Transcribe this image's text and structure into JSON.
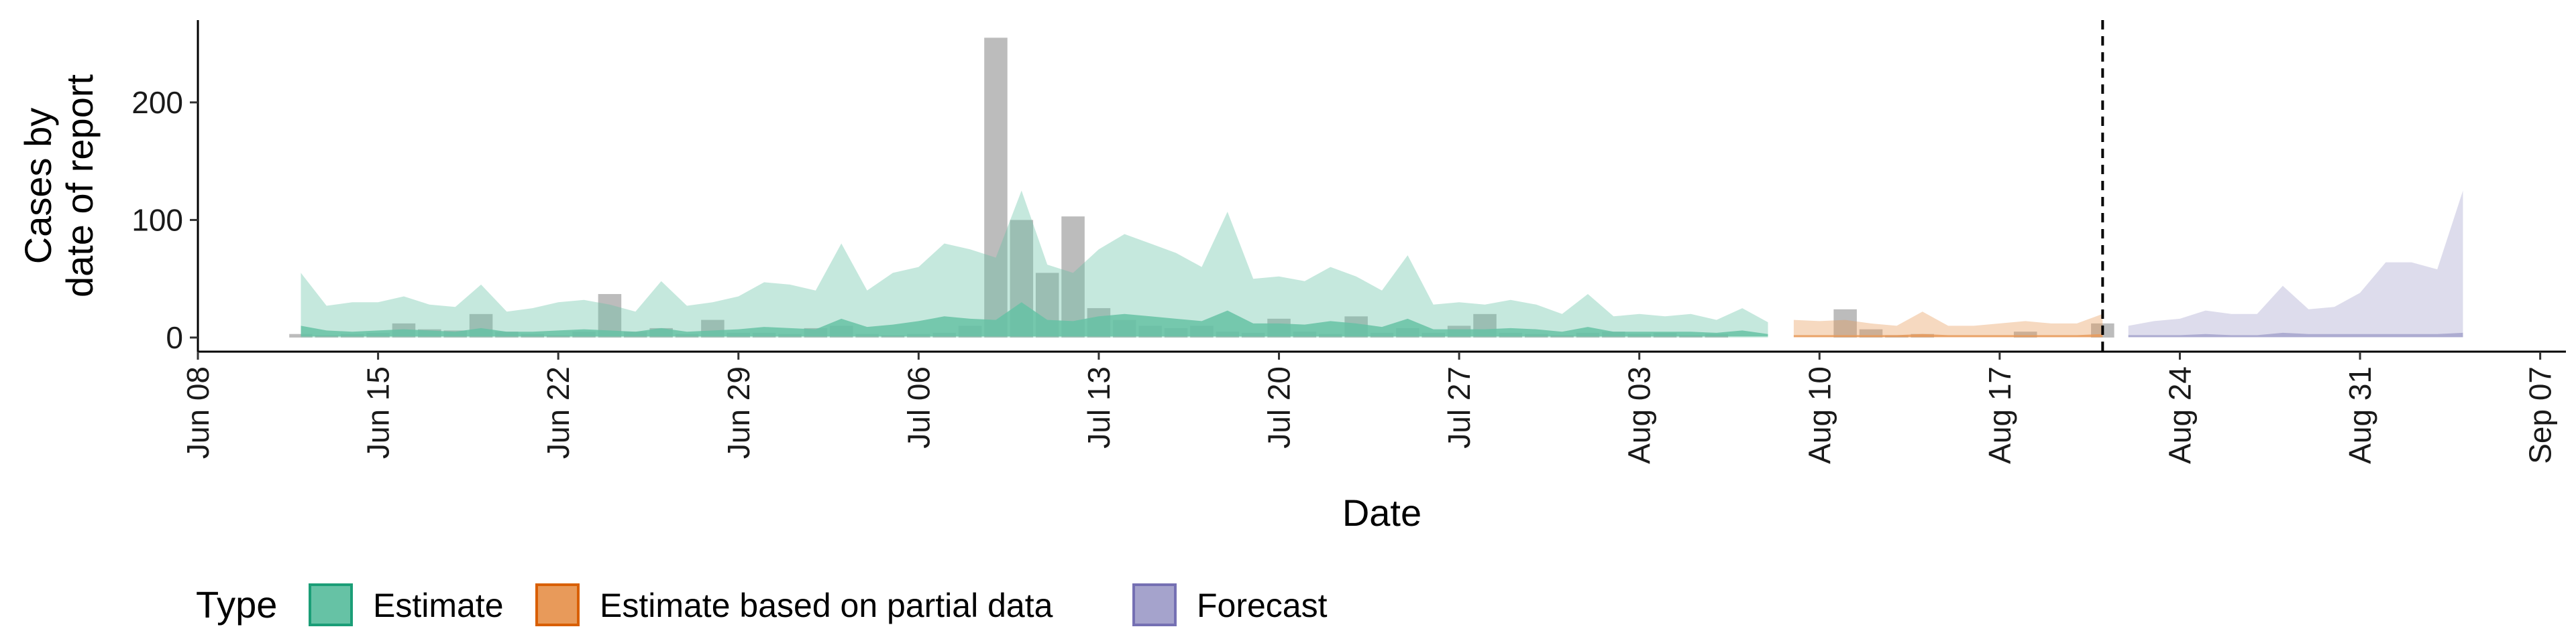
{
  "chart_data": {
    "type": "area",
    "xlabel": "Date",
    "ylabel_lines": [
      "Cases by",
      "date of report"
    ],
    "x_axis": {
      "range": [
        "2020-06-08",
        "2020-09-08"
      ],
      "ticks": [
        "Jun 08",
        "Jun 15",
        "Jun 22",
        "Jun 29",
        "Jul 06",
        "Jul 13",
        "Jul 20",
        "Jul 27",
        "Aug 03",
        "Aug 10",
        "Aug 17",
        "Aug 24",
        "Aug 31",
        "Sep 07"
      ],
      "tick_dates": [
        "2020-06-08",
        "2020-06-15",
        "2020-06-22",
        "2020-06-29",
        "2020-07-06",
        "2020-07-13",
        "2020-07-20",
        "2020-07-27",
        "2020-08-03",
        "2020-08-10",
        "2020-08-17",
        "2020-08-24",
        "2020-08-31",
        "2020-09-07"
      ]
    },
    "y_axis": {
      "range": [
        -12,
        270
      ],
      "ticks": [
        0,
        100,
        200
      ]
    },
    "forecast_date": "2020-08-21",
    "legend": {
      "title": "Type",
      "position": "bottom",
      "entries": [
        {
          "label": "Estimate",
          "fill": "#66c2a5",
          "stroke": "#1b9e77"
        },
        {
          "label": "Estimate based on partial data",
          "fill": "#e89a5a",
          "stroke": "#d95f02"
        },
        {
          "label": "Forecast",
          "fill": "#a5a3cc",
          "stroke": "#7570b3"
        }
      ]
    },
    "reported_cases": {
      "color": "#a0a0a0",
      "points": [
        [
          "2020-06-12",
          3
        ],
        [
          "2020-06-13",
          2
        ],
        [
          "2020-06-14",
          3
        ],
        [
          "2020-06-15",
          4
        ],
        [
          "2020-06-16",
          12
        ],
        [
          "2020-06-17",
          7
        ],
        [
          "2020-06-18",
          6
        ],
        [
          "2020-06-19",
          20
        ],
        [
          "2020-06-20",
          5
        ],
        [
          "2020-06-21",
          3
        ],
        [
          "2020-06-22",
          2
        ],
        [
          "2020-06-23",
          5
        ],
        [
          "2020-06-24",
          37
        ],
        [
          "2020-06-25",
          5
        ],
        [
          "2020-06-26",
          8
        ],
        [
          "2020-06-27",
          3
        ],
        [
          "2020-06-28",
          15
        ],
        [
          "2020-06-29",
          4
        ],
        [
          "2020-06-30",
          4
        ],
        [
          "2020-07-01",
          3
        ],
        [
          "2020-07-02",
          8
        ],
        [
          "2020-07-03",
          10
        ],
        [
          "2020-07-04",
          3
        ],
        [
          "2020-07-05",
          2
        ],
        [
          "2020-07-06",
          3
        ],
        [
          "2020-07-07",
          4
        ],
        [
          "2020-07-08",
          10
        ],
        [
          "2020-07-09",
          255
        ],
        [
          "2020-07-10",
          100
        ],
        [
          "2020-07-11",
          55
        ],
        [
          "2020-07-12",
          103
        ],
        [
          "2020-07-13",
          25
        ],
        [
          "2020-07-14",
          15
        ],
        [
          "2020-07-15",
          10
        ],
        [
          "2020-07-16",
          8
        ],
        [
          "2020-07-17",
          10
        ],
        [
          "2020-07-18",
          5
        ],
        [
          "2020-07-19",
          4
        ],
        [
          "2020-07-20",
          16
        ],
        [
          "2020-07-21",
          5
        ],
        [
          "2020-07-22",
          3
        ],
        [
          "2020-07-23",
          18
        ],
        [
          "2020-07-24",
          4
        ],
        [
          "2020-07-25",
          8
        ],
        [
          "2020-07-26",
          4
        ],
        [
          "2020-07-27",
          10
        ],
        [
          "2020-07-28",
          20
        ],
        [
          "2020-07-29",
          4
        ],
        [
          "2020-07-30",
          3
        ],
        [
          "2020-07-31",
          2
        ],
        [
          "2020-08-01",
          4
        ],
        [
          "2020-08-02",
          5
        ],
        [
          "2020-08-03",
          3
        ],
        [
          "2020-08-04",
          4
        ],
        [
          "2020-08-05",
          2
        ],
        [
          "2020-08-06",
          3
        ],
        [
          "2020-08-11",
          24
        ],
        [
          "2020-08-12",
          7
        ],
        [
          "2020-08-13",
          2
        ],
        [
          "2020-08-14",
          3
        ],
        [
          "2020-08-18",
          5
        ],
        [
          "2020-08-21",
          12
        ]
      ]
    },
    "series": [
      {
        "name": "Estimate",
        "fill": "#66c2a5",
        "outer": {
          "x": [
            "2020-06-12",
            "2020-06-13",
            "2020-06-14",
            "2020-06-15",
            "2020-06-16",
            "2020-06-17",
            "2020-06-18",
            "2020-06-19",
            "2020-06-20",
            "2020-06-21",
            "2020-06-22",
            "2020-06-23",
            "2020-06-24",
            "2020-06-25",
            "2020-06-26",
            "2020-06-27",
            "2020-06-28",
            "2020-06-29",
            "2020-06-30",
            "2020-07-01",
            "2020-07-02",
            "2020-07-03",
            "2020-07-04",
            "2020-07-05",
            "2020-07-06",
            "2020-07-07",
            "2020-07-08",
            "2020-07-09",
            "2020-07-10",
            "2020-07-11",
            "2020-07-12",
            "2020-07-13",
            "2020-07-14",
            "2020-07-15",
            "2020-07-16",
            "2020-07-17",
            "2020-07-18",
            "2020-07-19",
            "2020-07-20",
            "2020-07-21",
            "2020-07-22",
            "2020-07-23",
            "2020-07-24",
            "2020-07-25",
            "2020-07-26",
            "2020-07-27",
            "2020-07-28",
            "2020-07-29",
            "2020-07-30",
            "2020-07-31",
            "2020-08-01",
            "2020-08-02",
            "2020-08-03",
            "2020-08-04",
            "2020-08-05",
            "2020-08-06",
            "2020-08-07",
            "2020-08-08"
          ],
          "lower": [
            0,
            0,
            0,
            0,
            0,
            0,
            0,
            0,
            0,
            0,
            0,
            0,
            0,
            0,
            0,
            0,
            0,
            0,
            0,
            0,
            0,
            0,
            0,
            0,
            0,
            0,
            0,
            0,
            0,
            0,
            0,
            0,
            0,
            0,
            0,
            0,
            0,
            0,
            0,
            0,
            0,
            0,
            0,
            0,
            0,
            0,
            0,
            0,
            0,
            0,
            0,
            0,
            0,
            0,
            0,
            0,
            0,
            0
          ],
          "upper": [
            55,
            27,
            30,
            30,
            35,
            28,
            26,
            45,
            22,
            25,
            30,
            32,
            28,
            22,
            48,
            27,
            30,
            35,
            47,
            45,
            40,
            80,
            40,
            55,
            60,
            80,
            75,
            68,
            125,
            62,
            55,
            75,
            88,
            80,
            72,
            60,
            107,
            50,
            52,
            48,
            60,
            52,
            40,
            70,
            28,
            30,
            28,
            32,
            28,
            20,
            37,
            18,
            20,
            18,
            20,
            15,
            25,
            13
          ]
        },
        "inner": {
          "lower": [
            1,
            1,
            1,
            1,
            1,
            1,
            1,
            1,
            1,
            1,
            1,
            1,
            1,
            1,
            1,
            1,
            1,
            1,
            1,
            1,
            1,
            1,
            1,
            1,
            1,
            1,
            1,
            1,
            1,
            1,
            1,
            1,
            1,
            1,
            1,
            1,
            1,
            1,
            1,
            1,
            1,
            1,
            1,
            1,
            1,
            1,
            1,
            1,
            1,
            1,
            1,
            1,
            1,
            1,
            1,
            1,
            1,
            1
          ],
          "upper": [
            10,
            6,
            5,
            6,
            7,
            6,
            5,
            8,
            5,
            5,
            6,
            7,
            6,
            5,
            8,
            5,
            6,
            7,
            9,
            8,
            7,
            16,
            9,
            11,
            14,
            18,
            16,
            15,
            30,
            15,
            14,
            18,
            20,
            18,
            16,
            14,
            23,
            12,
            12,
            11,
            14,
            12,
            9,
            16,
            7,
            7,
            7,
            8,
            7,
            5,
            9,
            5,
            5,
            5,
            5,
            4,
            6,
            3
          ]
        }
      },
      {
        "name": "Estimate based on partial data",
        "fill": "#e89a5a",
        "outer": {
          "x": [
            "2020-08-09",
            "2020-08-10",
            "2020-08-11",
            "2020-08-12",
            "2020-08-13",
            "2020-08-14",
            "2020-08-15",
            "2020-08-16",
            "2020-08-17",
            "2020-08-18",
            "2020-08-19",
            "2020-08-20",
            "2020-08-21"
          ],
          "lower": [
            0,
            0,
            0,
            0,
            0,
            0,
            0,
            0,
            0,
            0,
            0,
            0,
            0
          ],
          "upper": [
            15,
            14,
            15,
            12,
            10,
            22,
            10,
            10,
            12,
            14,
            12,
            12,
            20
          ]
        },
        "inner": {
          "lower": [
            0.5,
            0.5,
            0.5,
            0.5,
            0.5,
            0.5,
            0.5,
            0.5,
            0.5,
            0.5,
            0.5,
            0.5,
            0.5
          ],
          "upper": [
            2,
            2,
            2,
            2,
            2,
            3,
            2,
            2,
            2,
            2,
            2,
            2,
            3
          ]
        }
      },
      {
        "name": "Forecast",
        "fill": "#a5a3cc",
        "outer": {
          "x": [
            "2020-08-22",
            "2020-08-23",
            "2020-08-24",
            "2020-08-25",
            "2020-08-26",
            "2020-08-27",
            "2020-08-28",
            "2020-08-29",
            "2020-08-30",
            "2020-08-31",
            "2020-09-01",
            "2020-09-02",
            "2020-09-03",
            "2020-09-04"
          ],
          "lower": [
            0,
            0,
            0,
            0,
            0,
            0,
            0,
            0,
            0,
            0,
            0,
            0,
            0,
            0
          ],
          "upper": [
            10,
            14,
            16,
            23,
            20,
            20,
            44,
            24,
            26,
            38,
            64,
            64,
            58,
            125
          ]
        },
        "inner": {
          "lower": [
            0.5,
            0.5,
            0.5,
            0.5,
            0.5,
            0.5,
            0.5,
            0.5,
            0.5,
            0.5,
            0.5,
            0.5,
            0.5,
            0.5
          ],
          "upper": [
            2,
            2,
            2,
            3,
            2,
            2,
            4,
            3,
            3,
            3,
            3,
            3,
            3,
            4
          ]
        }
      }
    ]
  }
}
